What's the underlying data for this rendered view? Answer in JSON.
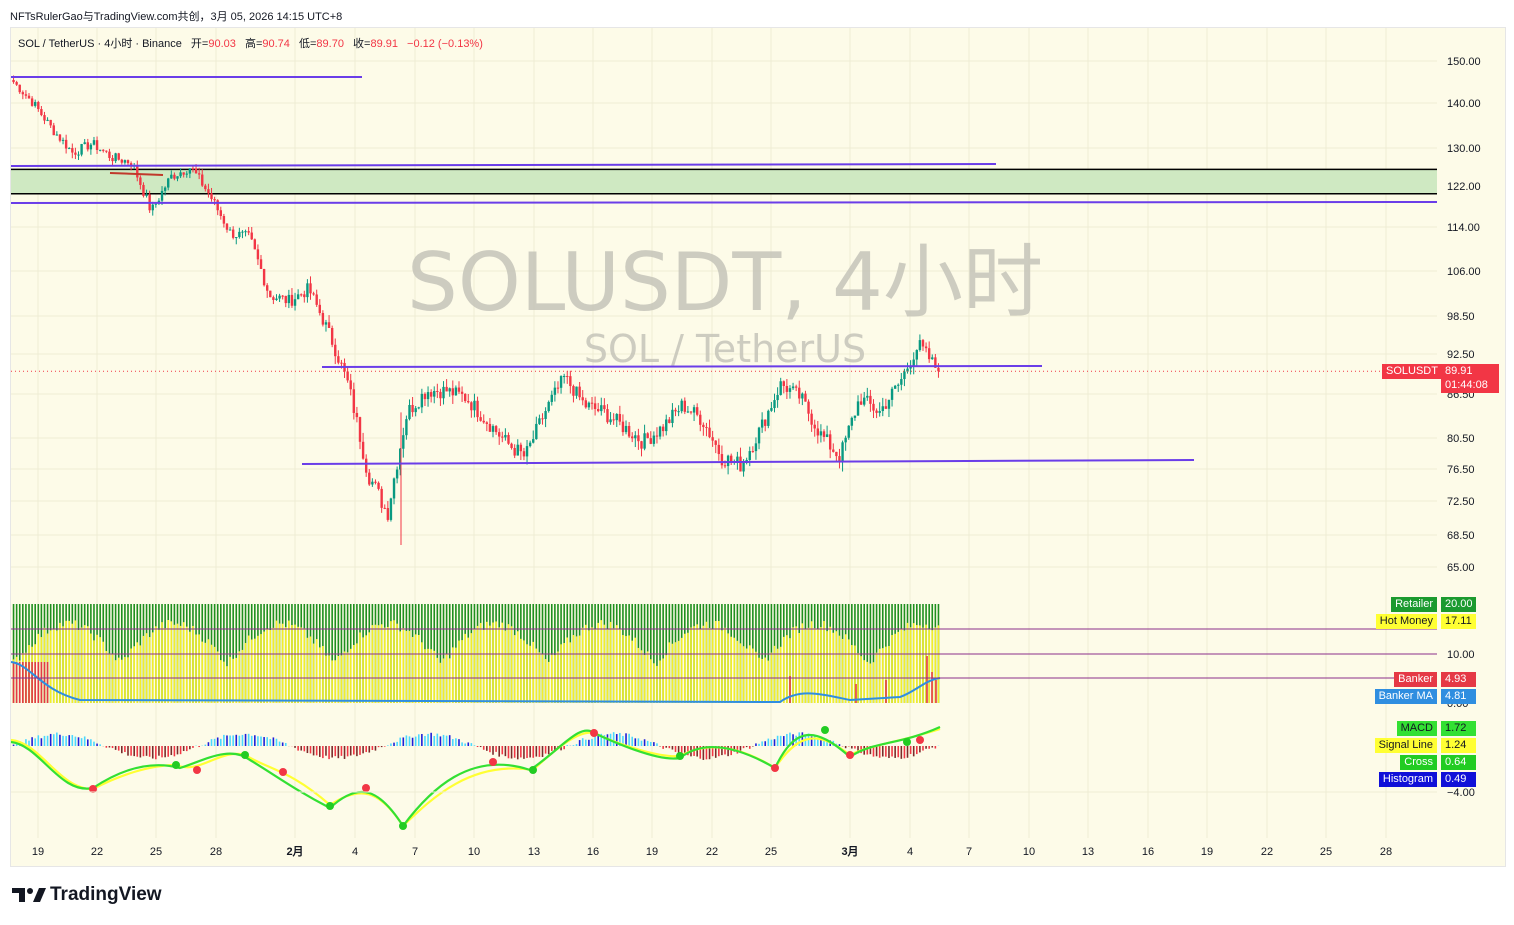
{
  "header": {
    "author_line": "NFTsRulerGao与TradingView.com共创，3月 05, 2026 14:15 UTC+8"
  },
  "legend": {
    "symbol_line": "SOL / TetherUS · 4小时 · Binance",
    "open_label": "开=",
    "open_value": "90.03",
    "high_label": "高=",
    "high_value": "90.74",
    "low_label": "低=",
    "low_value": "89.70",
    "close_label": "收=",
    "close_value": "89.91",
    "change": "−0.12 (−0.13%)"
  },
  "watermark": {
    "title": "SOLUSDT, 4小时",
    "subtitle": "SOL / TetherUS"
  },
  "price_tag": {
    "symbol": "SOLUSDT",
    "price": "89.91",
    "countdown": "01:44:08"
  },
  "indicator_badges": [
    {
      "label": "Retailer",
      "value": "20.00",
      "color": "#1b9a2f"
    },
    {
      "label": "Hot Money",
      "value": "17.11",
      "color": "#ffff33"
    },
    {
      "label": "Banker",
      "value": "4.93",
      "color": "#e53945"
    },
    {
      "label": "Banker MA",
      "value": "4.81",
      "color": "#2f8ee0"
    },
    {
      "label": "MACD",
      "value": "1.72",
      "color": "#33e033"
    },
    {
      "label": "Signal Line",
      "value": "1.24",
      "color": "#ffff33"
    },
    {
      "label": "Cross",
      "value": "0.64",
      "color": "#22cc22"
    },
    {
      "label": "Histogram",
      "value": "0.49",
      "color": "#1010d8"
    }
  ],
  "indicator_axis": [
    "10.00",
    "0.00",
    "−4.00"
  ],
  "brand": "TradingView",
  "colors": {
    "up": "#089981",
    "down": "#f23645",
    "trendline": "#6a3de8",
    "zone": "#cfe9c2",
    "background": "#fdfbe8"
  },
  "chart_data": {
    "type": "candlestick",
    "symbol": "SOLUSDT",
    "interval": "4小时",
    "exchange": "Binance",
    "yaxis_ticks": [
      "150.00",
      "140.00",
      "130.00",
      "122.00",
      "114.00",
      "106.00",
      "98.50",
      "92.50",
      "86.50",
      "80.50",
      "76.50",
      "72.50",
      "68.50",
      "65.00"
    ],
    "xaxis_ticks": [
      "19",
      "22",
      "25",
      "28",
      "2月",
      "4",
      "7",
      "10",
      "13",
      "16",
      "19",
      "22",
      "25",
      "3月",
      "4",
      "7",
      "10",
      "13",
      "16",
      "19",
      "22",
      "25",
      "28"
    ],
    "approx_close_path": [
      [
        "19",
        145
      ],
      [
        "20",
        140
      ],
      [
        "21",
        134
      ],
      [
        "22",
        129
      ],
      [
        "23",
        131
      ],
      [
        "24",
        128
      ],
      [
        "25",
        127
      ],
      [
        "26",
        117
      ],
      [
        "27",
        124
      ],
      [
        "28",
        126
      ],
      [
        "29",
        120
      ],
      [
        "30",
        113
      ],
      [
        "31",
        112
      ],
      [
        "2月",
        102
      ],
      [
        "2",
        101
      ],
      [
        "3",
        103
      ],
      [
        "4",
        96
      ],
      [
        "5",
        88
      ],
      [
        "6",
        76
      ],
      [
        "6b",
        71
      ],
      [
        "7",
        84
      ],
      [
        "8",
        87
      ],
      [
        "9",
        87
      ],
      [
        "10",
        86
      ],
      [
        "11",
        83
      ],
      [
        "12",
        80
      ],
      [
        "13",
        78
      ],
      [
        "14",
        84
      ],
      [
        "15",
        89
      ],
      [
        "16",
        85
      ],
      [
        "17",
        84
      ],
      [
        "18",
        82
      ],
      [
        "19",
        80
      ],
      [
        "20",
        82
      ],
      [
        "21",
        85
      ],
      [
        "22",
        83
      ],
      [
        "23",
        78
      ],
      [
        "24",
        77
      ],
      [
        "25",
        82
      ],
      [
        "26",
        88
      ],
      [
        "27",
        86
      ],
      [
        "28",
        81
      ],
      [
        "3月",
        78
      ],
      [
        "2b",
        86
      ],
      [
        "3b",
        84
      ],
      [
        "4",
        88
      ],
      [
        "5",
        94
      ],
      [
        "5b",
        89.91
      ]
    ],
    "last_price": 89.91,
    "ohlc_last": {
      "open": 90.03,
      "high": 90.74,
      "low": 89.7,
      "close": 89.91,
      "change": -0.12,
      "change_pct": -0.13
    }
  }
}
